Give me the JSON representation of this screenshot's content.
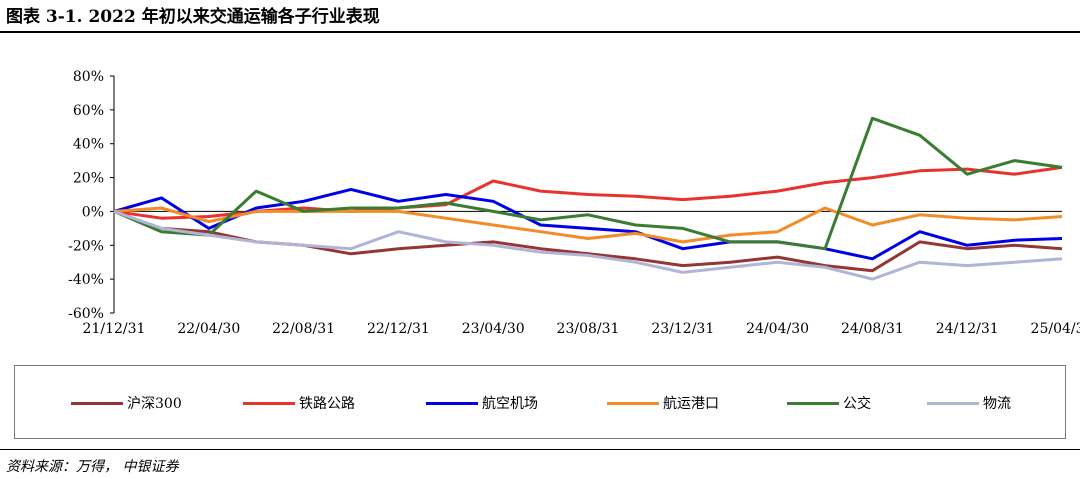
{
  "title": "图表 3-1. 2022 年初以来交通运输各子行业表现",
  "source": "资料来源：万得， 中银证券",
  "chart_data": {
    "type": "line",
    "title": "图表 3-1. 2022 年初以来交通运输各子行业表现",
    "xlabel": "",
    "ylabel": "",
    "ylim": [
      -60,
      80
    ],
    "yticks": [
      80,
      60,
      40,
      20,
      0,
      -20,
      -40,
      -60
    ],
    "ytick_labels": [
      "80%",
      "60%",
      "40%",
      "20%",
      "0%",
      "-20%",
      "-40%",
      "-60%"
    ],
    "x": [
      "21/12/31",
      "22/02/28",
      "22/04/30",
      "22/06/30",
      "22/08/31",
      "22/10/31",
      "22/12/31",
      "23/02/28",
      "23/04/30",
      "23/06/30",
      "23/08/31",
      "23/10/31",
      "23/12/31",
      "24/02/28",
      "24/04/30",
      "24/06/30",
      "24/08/31",
      "24/10/31",
      "24/12/31",
      "25/02/28",
      "25/04/30"
    ],
    "xtick_labels": [
      "21/12/31",
      "22/04/30",
      "22/08/31",
      "22/12/31",
      "23/04/30",
      "23/08/31",
      "23/12/31",
      "24/04/30",
      "24/08/31",
      "24/12/31",
      "25/04/30"
    ],
    "grid": false,
    "legend_position": "bottom",
    "series": [
      {
        "name": "沪深300",
        "color": "#943634",
        "values": [
          0,
          -10,
          -12,
          -18,
          -20,
          -25,
          -22,
          -20,
          -18,
          -22,
          -25,
          -28,
          -32,
          -30,
          -27,
          -32,
          -35,
          -18,
          -22,
          -20,
          -22
        ]
      },
      {
        "name": "铁路公路",
        "color": "#e8322d",
        "values": [
          0,
          -4,
          -3,
          0,
          2,
          0,
          2,
          4,
          18,
          12,
          10,
          9,
          7,
          9,
          12,
          17,
          20,
          24,
          25,
          22,
          26
        ]
      },
      {
        "name": "航空机场",
        "color": "#0000e6",
        "values": [
          0,
          8,
          -10,
          2,
          6,
          13,
          6,
          10,
          6,
          -8,
          -10,
          -12,
          -22,
          -18,
          -18,
          -22,
          -28,
          -12,
          -20,
          -17,
          -16
        ]
      },
      {
        "name": "航运港口",
        "color": "#f28c28",
        "values": [
          0,
          2,
          -6,
          0,
          0,
          0,
          0,
          -4,
          -8,
          -12,
          -16,
          -13,
          -18,
          -14,
          -12,
          2,
          -8,
          -2,
          -4,
          -5,
          -3
        ]
      },
      {
        "name": "公交",
        "color": "#3a7d32",
        "values": [
          0,
          -12,
          -14,
          12,
          0,
          2,
          2,
          5,
          0,
          -5,
          -2,
          -8,
          -10,
          -18,
          -18,
          -22,
          55,
          45,
          22,
          30,
          26
        ]
      },
      {
        "name": "物流",
        "color": "#b0b4d6",
        "values": [
          0,
          -10,
          -14,
          -18,
          -20,
          -22,
          -12,
          -18,
          -20,
          -24,
          -26,
          -30,
          -36,
          -33,
          -30,
          -33,
          -40,
          -30,
          -32,
          -30,
          -28
        ]
      }
    ]
  }
}
